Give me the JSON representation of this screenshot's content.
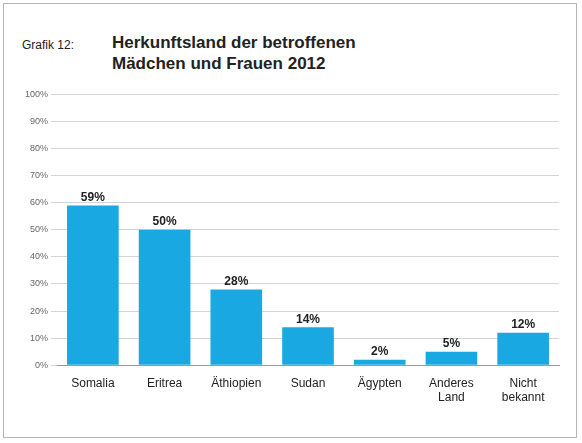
{
  "chart_data": {
    "type": "bar",
    "annotations": [
      "Grafik 12:"
    ],
    "title": [
      "Herkunftsland der betroffenen",
      "Mädchen und Frauen 2012"
    ],
    "categories": [
      "Somalia",
      "Eritrea",
      "Äthiopien",
      "Sudan",
      "Ägypten",
      "Anderes Land",
      "Nicht bekannt"
    ],
    "values": [
      59,
      50,
      28,
      14,
      2,
      5,
      12
    ],
    "value_labels": [
      "59%",
      "50%",
      "28%",
      "14%",
      "2%",
      "5%",
      "12%"
    ],
    "color": "#1aa8e2",
    "ylim": [
      0,
      100
    ],
    "yticks": [
      {
        "value": 0,
        "label": "0%"
      },
      {
        "value": 10,
        "label": "10%"
      },
      {
        "value": 20,
        "label": "20%"
      },
      {
        "value": 30,
        "label": "30%"
      },
      {
        "value": 40,
        "label": "40%"
      },
      {
        "value": 50,
        "label": "50%"
      },
      {
        "value": 60,
        "label": "60%"
      },
      {
        "value": 70,
        "label": "70%"
      },
      {
        "value": 80,
        "label": "80%"
      },
      {
        "value": 90,
        "label": "90%"
      },
      {
        "value": 100,
        "label": "100%"
      }
    ],
    "grid": true,
    "data_labels": true
  }
}
